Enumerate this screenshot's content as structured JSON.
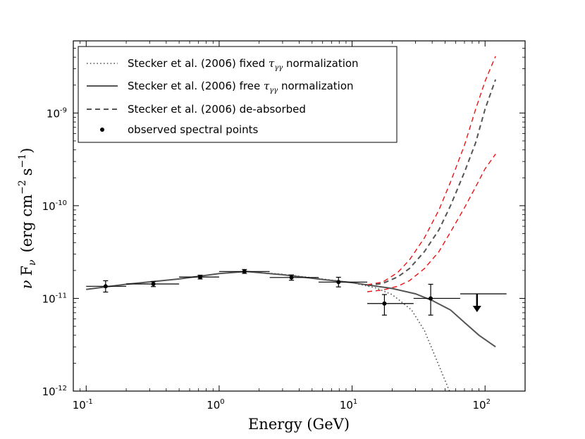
{
  "chart_data": {
    "type": "line",
    "xlabel": "Energy (GeV)",
    "ylabel_parts": {
      "nu": "ν",
      "F": "F",
      "sub": "ν",
      "units_open": "(erg cm",
      "exp1": "−2",
      "s": "s",
      "exp2": "−1",
      "units_close": ")"
    },
    "xscale": "log",
    "yscale": "log",
    "xlim": [
      0.08,
      200
    ],
    "ylim": [
      1e-12,
      6e-09
    ],
    "x_ticks": [
      {
        "value": 0.1,
        "base": "10",
        "exp": "-1"
      },
      {
        "value": 1,
        "base": "10",
        "exp": "0"
      },
      {
        "value": 10,
        "base": "10",
        "exp": "1"
      },
      {
        "value": 100,
        "base": "10",
        "exp": "2"
      }
    ],
    "y_ticks": [
      {
        "value": 1e-12,
        "base": "10",
        "exp": "-12"
      },
      {
        "value": 1e-11,
        "base": "10",
        "exp": "-11"
      },
      {
        "value": 1e-10,
        "base": "10",
        "exp": "-10"
      },
      {
        "value": 1e-09,
        "base": "10",
        "exp": "-9"
      }
    ],
    "legend": {
      "location": "top-left",
      "entries": [
        {
          "key": "fixed",
          "style": "dotted",
          "text_before": "Stecker et al. (2006) fixed ",
          "symbol": "τ",
          "symbol_sub": "γγ",
          "text_after": " normalization"
        },
        {
          "key": "free",
          "style": "solid",
          "text_before": "Stecker et al. (2006) free ",
          "symbol": "τ",
          "symbol_sub": "γγ",
          "text_after": " normalization"
        },
        {
          "key": "deabs",
          "style": "dashed",
          "text_before": "Stecker et al. (2006) de-absorbed",
          "symbol": "",
          "symbol_sub": "",
          "text_after": ""
        },
        {
          "key": "points",
          "style": "marker",
          "text_before": "observed spectral points",
          "symbol": "",
          "symbol_sub": "",
          "text_after": ""
        }
      ]
    },
    "series": [
      {
        "name": "Stecker et al. (2006) fixed τγγ normalization",
        "style": "dotted",
        "color": "#555555",
        "points": [
          [
            0.1,
            1.25e-11
          ],
          [
            0.2,
            1.42e-11
          ],
          [
            0.5,
            1.62e-11
          ],
          [
            1,
            1.85e-11
          ],
          [
            1.6,
            1.95e-11
          ],
          [
            3,
            1.82e-11
          ],
          [
            6,
            1.62e-11
          ],
          [
            10,
            1.48e-11
          ],
          [
            15,
            1.3e-11
          ],
          [
            20,
            1.1e-11
          ],
          [
            28,
            7.5e-12
          ],
          [
            35,
            4.5e-12
          ],
          [
            42,
            2.4e-12
          ],
          [
            48,
            1.5e-12
          ],
          [
            54,
            1e-12
          ]
        ]
      },
      {
        "name": "Stecker et al. (2006) free τγγ normalization",
        "style": "solid",
        "color": "#555555",
        "points": [
          [
            0.1,
            1.25e-11
          ],
          [
            0.2,
            1.42e-11
          ],
          [
            0.5,
            1.62e-11
          ],
          [
            1,
            1.85e-11
          ],
          [
            1.6,
            1.95e-11
          ],
          [
            3,
            1.8e-11
          ],
          [
            6,
            1.6e-11
          ],
          [
            10,
            1.48e-11
          ],
          [
            20,
            1.28e-11
          ],
          [
            30,
            1.12e-11
          ],
          [
            40,
            9.5e-12
          ],
          [
            55,
            7.5e-12
          ],
          [
            70,
            5.5e-12
          ],
          [
            90,
            4e-12
          ],
          [
            120,
            3e-12
          ]
        ]
      },
      {
        "name": "Stecker et al. (2006) de-absorbed",
        "style": "dashed",
        "color": "#555555",
        "points": [
          [
            13,
            1.38e-11
          ],
          [
            17,
            1.45e-11
          ],
          [
            22,
            1.7e-11
          ],
          [
            27,
            2.1e-11
          ],
          [
            35,
            3.2e-11
          ],
          [
            45,
            5.5e-11
          ],
          [
            55,
            1e-10
          ],
          [
            70,
            2.3e-10
          ],
          [
            85,
            4.8e-10
          ],
          [
            100,
            1.1e-09
          ],
          [
            120,
            2.3e-09
          ]
        ]
      },
      {
        "name": "de-absorbed upper bound",
        "style": "dashed",
        "color": "#ee1111",
        "points": [
          [
            13,
            1.4e-11
          ],
          [
            17,
            1.5e-11
          ],
          [
            22,
            1.9e-11
          ],
          [
            27,
            2.6e-11
          ],
          [
            35,
            4.5e-11
          ],
          [
            45,
            9e-11
          ],
          [
            55,
            1.8e-10
          ],
          [
            70,
            4.5e-10
          ],
          [
            85,
            1.1e-09
          ],
          [
            100,
            2.2e-09
          ],
          [
            120,
            4.1e-09
          ]
        ]
      },
      {
        "name": "de-absorbed lower bound",
        "style": "dashed",
        "color": "#ee1111",
        "points": [
          [
            13,
            1.18e-11
          ],
          [
            17,
            1.23e-11
          ],
          [
            22,
            1.35e-11
          ],
          [
            27,
            1.55e-11
          ],
          [
            35,
            2.1e-11
          ],
          [
            45,
            3.2e-11
          ],
          [
            55,
            5.2e-11
          ],
          [
            70,
            9.5e-11
          ],
          [
            85,
            1.6e-10
          ],
          [
            100,
            2.5e-10
          ],
          [
            120,
            3.6e-10
          ]
        ]
      }
    ],
    "observed_points": [
      {
        "x": 0.14,
        "y": 1.35e-11,
        "xlo": 0.1,
        "xhi": 0.2,
        "ylo": 1.17e-11,
        "yhi": 1.55e-11
      },
      {
        "x": 0.32,
        "y": 1.43e-11,
        "xlo": 0.2,
        "xhi": 0.5,
        "ylo": 1.34e-11,
        "yhi": 1.52e-11
      },
      {
        "x": 0.72,
        "y": 1.7e-11,
        "xlo": 0.5,
        "xhi": 1.0,
        "ylo": 1.62e-11,
        "yhi": 1.78e-11
      },
      {
        "x": 1.55,
        "y": 1.95e-11,
        "xlo": 1.0,
        "xhi": 2.4,
        "ylo": 1.86e-11,
        "yhi": 2.05e-11
      },
      {
        "x": 3.5,
        "y": 1.68e-11,
        "xlo": 2.4,
        "xhi": 5.6,
        "ylo": 1.57e-11,
        "yhi": 1.79e-11
      },
      {
        "x": 7.9,
        "y": 1.5e-11,
        "xlo": 5.6,
        "xhi": 13,
        "ylo": 1.33e-11,
        "yhi": 1.69e-11
      },
      {
        "x": 17.5,
        "y": 8.8e-12,
        "xlo": 13,
        "xhi": 29,
        "ylo": 6.6e-12,
        "yhi": 1.1e-11
      },
      {
        "x": 39,
        "y": 1e-11,
        "xlo": 29,
        "xhi": 65,
        "ylo": 6.6e-12,
        "yhi": 1.42e-11
      }
    ],
    "upper_limits": [
      {
        "x": 87,
        "y": 1.12e-11,
        "xlo": 65,
        "xhi": 145,
        "arrow_to": 7.1e-12
      }
    ]
  }
}
